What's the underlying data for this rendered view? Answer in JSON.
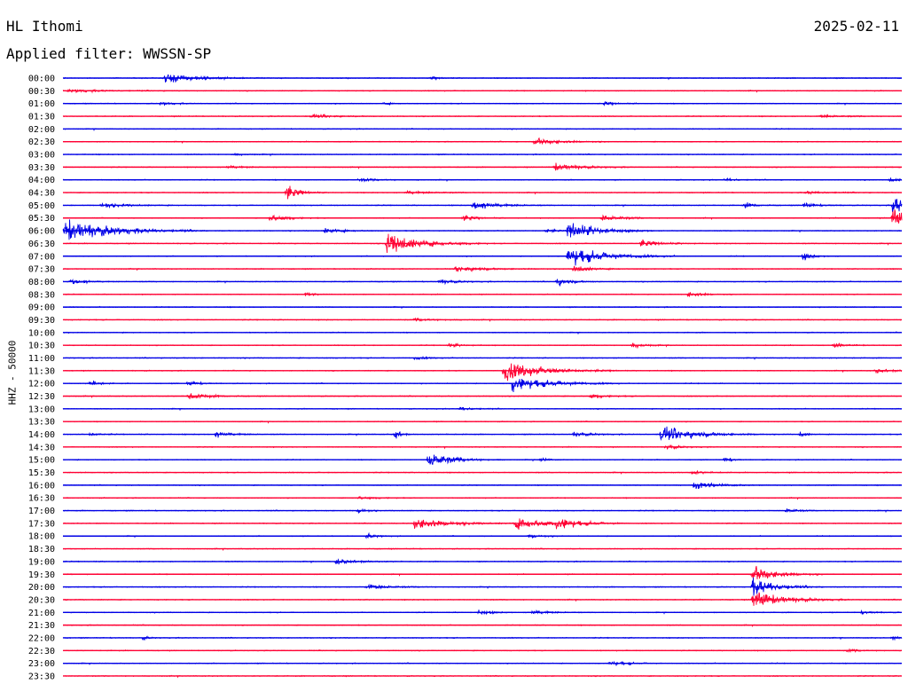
{
  "header": {
    "station": "HL Ithomi",
    "date": "2025-02-11",
    "filter": "Applied filter: WWSSN-SP"
  },
  "colors": {
    "blue": "#0000e6",
    "red": "#ff0033"
  },
  "chart_data": {
    "type": "helicorder",
    "ylabel": "HHZ - 50000",
    "row_labels": [
      "00:00",
      "00:30",
      "01:00",
      "01:30",
      "02:00",
      "02:30",
      "03:00",
      "03:30",
      "04:00",
      "04:30",
      "05:00",
      "05:30",
      "06:00",
      "06:30",
      "07:00",
      "07:30",
      "08:00",
      "08:30",
      "09:00",
      "09:30",
      "10:00",
      "10:30",
      "11:00",
      "11:30",
      "12:00",
      "12:30",
      "13:00",
      "13:30",
      "14:00",
      "14:30",
      "15:00",
      "15:30",
      "16:00",
      "16:30",
      "17:00",
      "17:30",
      "18:00",
      "18:30",
      "19:00",
      "19:30",
      "20:00",
      "20:30",
      "21:00",
      "21:30",
      "22:00",
      "22:30",
      "23:00",
      "23:30"
    ],
    "row_colors": [
      "blue",
      "red"
    ],
    "minutes_per_row": 30,
    "events": [
      {
        "row": 0,
        "minute": 3.6,
        "amp": 1.2,
        "dur": 2.2
      },
      {
        "row": 0,
        "minute": 13.1,
        "amp": 0.35,
        "dur": 0.6
      },
      {
        "row": 1,
        "minute": 0.1,
        "amp": 0.3,
        "dur": 2.5
      },
      {
        "row": 2,
        "minute": 3.4,
        "amp": 0.3,
        "dur": 1.0
      },
      {
        "row": 2,
        "minute": 11.4,
        "amp": 0.3,
        "dur": 0.5
      },
      {
        "row": 2,
        "minute": 19.3,
        "amp": 0.4,
        "dur": 0.8
      },
      {
        "row": 3,
        "minute": 8.8,
        "amp": 0.4,
        "dur": 1.5
      },
      {
        "row": 3,
        "minute": 27.0,
        "amp": 0.3,
        "dur": 1.5
      },
      {
        "row": 5,
        "minute": 16.8,
        "amp": 0.8,
        "dur": 1.7
      },
      {
        "row": 6,
        "minute": 6.0,
        "amp": 0.2,
        "dur": 1.0
      },
      {
        "row": 7,
        "minute": 5.8,
        "amp": 0.35,
        "dur": 1.2
      },
      {
        "row": 7,
        "minute": 17.5,
        "amp": 0.85,
        "dur": 1.8
      },
      {
        "row": 8,
        "minute": 10.5,
        "amp": 0.3,
        "dur": 1.5
      },
      {
        "row": 8,
        "minute": 23.6,
        "amp": 0.3,
        "dur": 1.0
      },
      {
        "row": 8,
        "minute": 29.5,
        "amp": 0.5,
        "dur": 0.6
      },
      {
        "row": 9,
        "minute": 7.9,
        "amp": 1.6,
        "dur": 0.9
      },
      {
        "row": 9,
        "minute": 12.2,
        "amp": 0.35,
        "dur": 1.6
      },
      {
        "row": 9,
        "minute": 26.5,
        "amp": 0.3,
        "dur": 1.5
      },
      {
        "row": 10,
        "minute": 1.3,
        "amp": 0.5,
        "dur": 1.7
      },
      {
        "row": 10,
        "minute": 14.6,
        "amp": 1.1,
        "dur": 1.6
      },
      {
        "row": 10,
        "minute": 24.3,
        "amp": 0.6,
        "dur": 0.8
      },
      {
        "row": 10,
        "minute": 26.4,
        "amp": 0.5,
        "dur": 1.0
      },
      {
        "row": 10,
        "minute": 29.6,
        "amp": 2.0,
        "dur": 1.5
      },
      {
        "row": 11,
        "minute": 7.3,
        "amp": 0.8,
        "dur": 1.2
      },
      {
        "row": 11,
        "minute": 14.2,
        "amp": 0.6,
        "dur": 1.0
      },
      {
        "row": 11,
        "minute": 19.2,
        "amp": 0.6,
        "dur": 1.6
      },
      {
        "row": 11,
        "minute": 29.6,
        "amp": 2.0,
        "dur": 1.5
      },
      {
        "row": 12,
        "minute": 0.0,
        "amp": 2.5,
        "dur": 3.2
      },
      {
        "row": 12,
        "minute": 9.3,
        "amp": 0.6,
        "dur": 1.2
      },
      {
        "row": 12,
        "minute": 17.2,
        "amp": 0.5,
        "dur": 0.6
      },
      {
        "row": 12,
        "minute": 18.0,
        "amp": 2.2,
        "dur": 2.0
      },
      {
        "row": 13,
        "minute": 11.5,
        "amp": 2.3,
        "dur": 2.3
      },
      {
        "row": 13,
        "minute": 20.6,
        "amp": 0.7,
        "dur": 1.4
      },
      {
        "row": 14,
        "minute": 18.0,
        "amp": 2.3,
        "dur": 2.5
      },
      {
        "row": 14,
        "minute": 26.4,
        "amp": 0.8,
        "dur": 0.7
      },
      {
        "row": 15,
        "minute": 14.0,
        "amp": 0.6,
        "dur": 2.0
      },
      {
        "row": 15,
        "minute": 18.2,
        "amp": 0.8,
        "dur": 1.2
      },
      {
        "row": 16,
        "minute": 0.2,
        "amp": 0.6,
        "dur": 1.2
      },
      {
        "row": 16,
        "minute": 13.4,
        "amp": 0.5,
        "dur": 1.2
      },
      {
        "row": 16,
        "minute": 17.6,
        "amp": 0.8,
        "dur": 1.0
      },
      {
        "row": 17,
        "minute": 8.6,
        "amp": 0.4,
        "dur": 0.6
      },
      {
        "row": 17,
        "minute": 22.3,
        "amp": 0.6,
        "dur": 1.0
      },
      {
        "row": 19,
        "minute": 12.5,
        "amp": 0.3,
        "dur": 1.5
      },
      {
        "row": 21,
        "minute": 13.7,
        "amp": 0.4,
        "dur": 1.0
      },
      {
        "row": 21,
        "minute": 20.3,
        "amp": 0.5,
        "dur": 1.0
      },
      {
        "row": 21,
        "minute": 27.5,
        "amp": 0.35,
        "dur": 1.0
      },
      {
        "row": 22,
        "minute": 12.5,
        "amp": 0.3,
        "dur": 1.0
      },
      {
        "row": 23,
        "minute": 15.7,
        "amp": 2.1,
        "dur": 2.7
      },
      {
        "row": 23,
        "minute": 29.0,
        "amp": 0.5,
        "dur": 1.2
      },
      {
        "row": 24,
        "minute": 0.9,
        "amp": 0.8,
        "dur": 0.6
      },
      {
        "row": 24,
        "minute": 4.4,
        "amp": 0.5,
        "dur": 0.8
      },
      {
        "row": 24,
        "minute": 16.0,
        "amp": 1.8,
        "dur": 2.5
      },
      {
        "row": 25,
        "minute": 4.4,
        "amp": 0.7,
        "dur": 1.5
      },
      {
        "row": 25,
        "minute": 18.8,
        "amp": 0.4,
        "dur": 1.2
      },
      {
        "row": 26,
        "minute": 14.1,
        "amp": 0.4,
        "dur": 1.0
      },
      {
        "row": 28,
        "minute": 0.9,
        "amp": 0.4,
        "dur": 0.6
      },
      {
        "row": 28,
        "minute": 5.4,
        "amp": 0.7,
        "dur": 1.1
      },
      {
        "row": 28,
        "minute": 11.8,
        "amp": 1.3,
        "dur": 0.4
      },
      {
        "row": 28,
        "minute": 18.2,
        "amp": 0.5,
        "dur": 1.2
      },
      {
        "row": 28,
        "minute": 21.3,
        "amp": 1.7,
        "dur": 2.4
      },
      {
        "row": 28,
        "minute": 26.3,
        "amp": 0.7,
        "dur": 0.4
      },
      {
        "row": 29,
        "minute": 21.5,
        "amp": 0.5,
        "dur": 1.0
      },
      {
        "row": 30,
        "minute": 13.0,
        "amp": 1.7,
        "dur": 1.7
      },
      {
        "row": 30,
        "minute": 17.0,
        "amp": 0.5,
        "dur": 0.5
      },
      {
        "row": 30,
        "minute": 23.6,
        "amp": 0.6,
        "dur": 0.5
      },
      {
        "row": 31,
        "minute": 22.4,
        "amp": 0.4,
        "dur": 1.0
      },
      {
        "row": 32,
        "minute": 22.5,
        "amp": 0.9,
        "dur": 1.5
      },
      {
        "row": 33,
        "minute": 10.5,
        "amp": 0.3,
        "dur": 1.2
      },
      {
        "row": 34,
        "minute": 10.5,
        "amp": 0.7,
        "dur": 0.5
      },
      {
        "row": 34,
        "minute": 25.8,
        "amp": 0.5,
        "dur": 0.8
      },
      {
        "row": 35,
        "minute": 12.5,
        "amp": 1.3,
        "dur": 2.3
      },
      {
        "row": 35,
        "minute": 16.1,
        "amp": 1.2,
        "dur": 2.5
      },
      {
        "row": 35,
        "minute": 17.6,
        "amp": 1.3,
        "dur": 1.5
      },
      {
        "row": 36,
        "minute": 10.8,
        "amp": 0.5,
        "dur": 0.7
      },
      {
        "row": 36,
        "minute": 16.6,
        "amp": 0.5,
        "dur": 0.8
      },
      {
        "row": 38,
        "minute": 9.7,
        "amp": 0.6,
        "dur": 1.5
      },
      {
        "row": 39,
        "minute": 24.6,
        "amp": 1.9,
        "dur": 1.6
      },
      {
        "row": 40,
        "minute": 10.8,
        "amp": 0.6,
        "dur": 1.5
      },
      {
        "row": 40,
        "minute": 24.6,
        "amp": 2.0,
        "dur": 1.6
      },
      {
        "row": 41,
        "minute": 24.6,
        "amp": 1.9,
        "dur": 2.2
      },
      {
        "row": 42,
        "minute": 14.8,
        "amp": 0.6,
        "dur": 0.8
      },
      {
        "row": 42,
        "minute": 16.7,
        "amp": 0.5,
        "dur": 1.2
      },
      {
        "row": 42,
        "minute": 28.5,
        "amp": 0.3,
        "dur": 1.0
      },
      {
        "row": 44,
        "minute": 2.8,
        "amp": 0.4,
        "dur": 0.4
      },
      {
        "row": 44,
        "minute": 29.6,
        "amp": 0.5,
        "dur": 0.4
      },
      {
        "row": 45,
        "minute": 28.0,
        "amp": 0.3,
        "dur": 1.0
      },
      {
        "row": 46,
        "minute": 19.5,
        "amp": 0.6,
        "dur": 1.2
      }
    ]
  }
}
